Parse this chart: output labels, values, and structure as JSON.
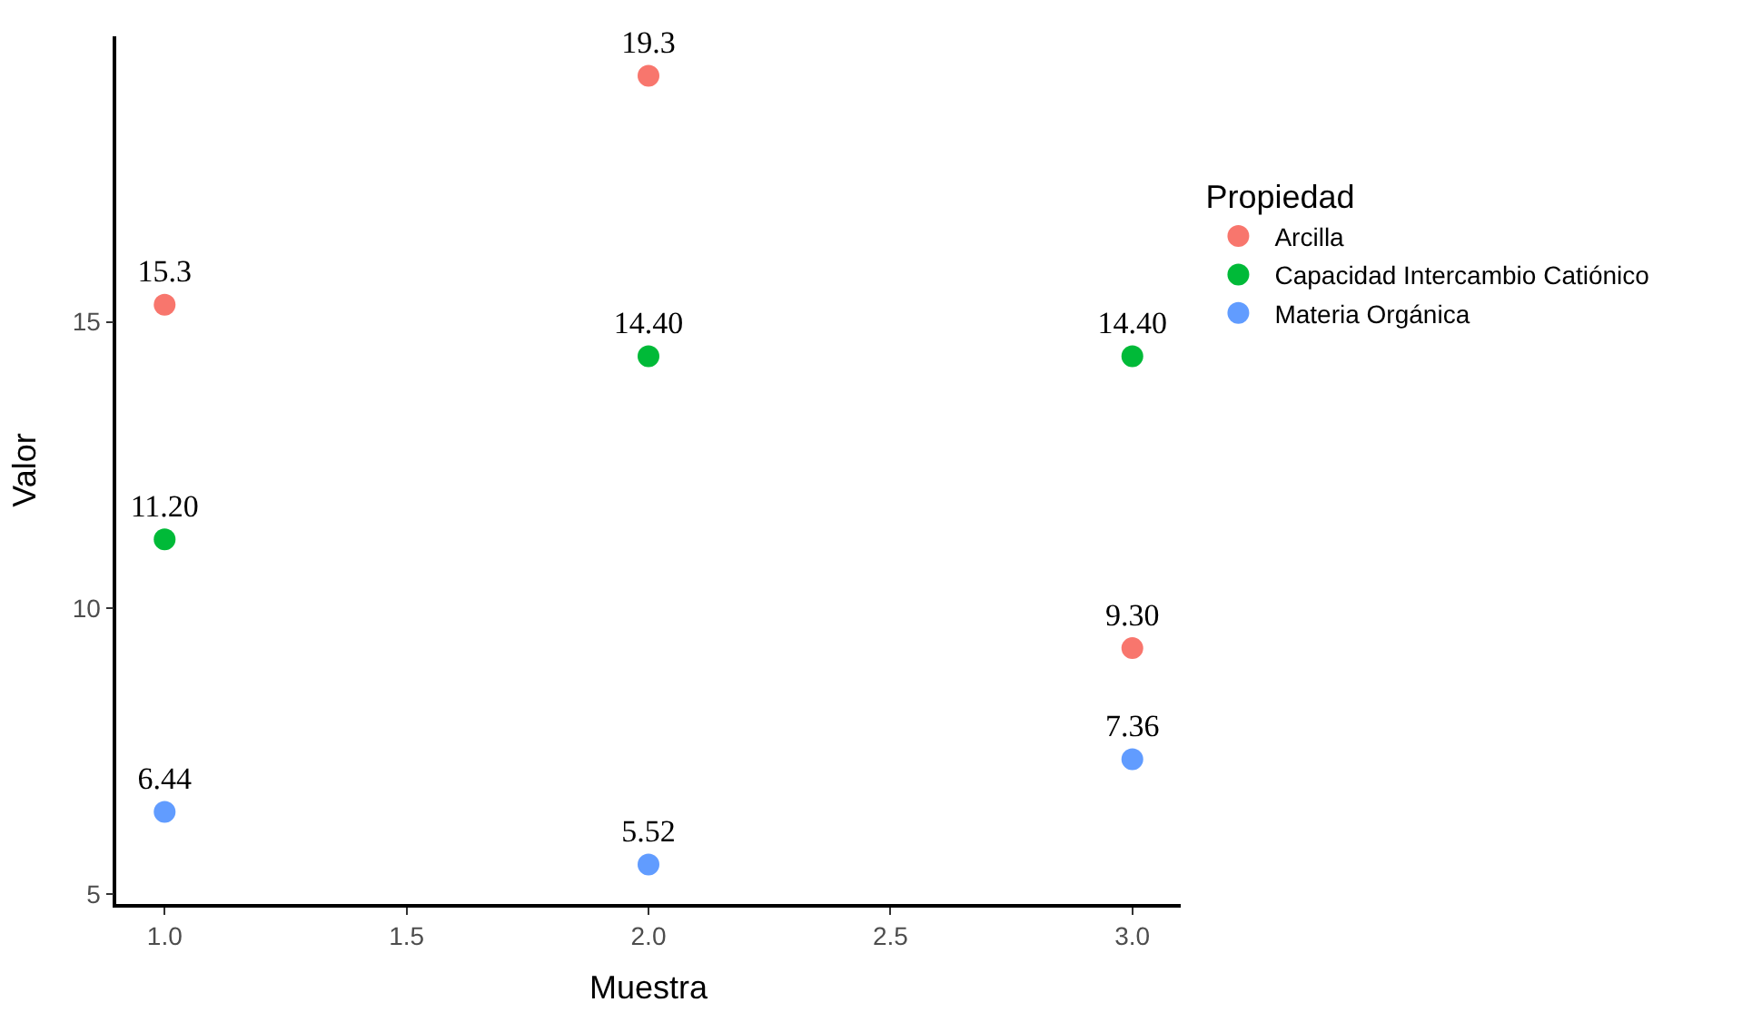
{
  "chart_data": {
    "type": "scatter",
    "xlabel": "Muestra",
    "ylabel": "Valor",
    "legend_title": "Propiedad",
    "x": [
      1,
      2,
      3
    ],
    "xlim": [
      0.9,
      3.1
    ],
    "xticks": [
      {
        "value": 1,
        "label": "1.0"
      },
      1.5,
      {
        "value": 2,
        "label": "2.0"
      },
      2.5,
      {
        "value": 3,
        "label": "3.0"
      }
    ],
    "ylim": [
      4.83,
      19.99
    ],
    "yticks": [
      5,
      10,
      15
    ],
    "grid": false,
    "legend": "right",
    "marker": "circle",
    "series": [
      {
        "name": "Arcilla",
        "color": "#f8766d",
        "values": [
          15.3,
          19.3,
          9.3
        ],
        "value_labels": [
          "15.3",
          "19.3",
          "9.30"
        ]
      },
      {
        "name": "Capacidad Intercambio Catiónico",
        "color": "#00ba38",
        "values": [
          11.2,
          14.4,
          14.4
        ],
        "value_labels": [
          "11.20",
          "14.40",
          "14.40"
        ]
      },
      {
        "name": "Materia Orgánica",
        "color": "#619cff",
        "values": [
          6.44,
          5.52,
          7.36
        ],
        "value_labels": [
          "6.44",
          "5.52",
          "7.36"
        ]
      }
    ]
  }
}
